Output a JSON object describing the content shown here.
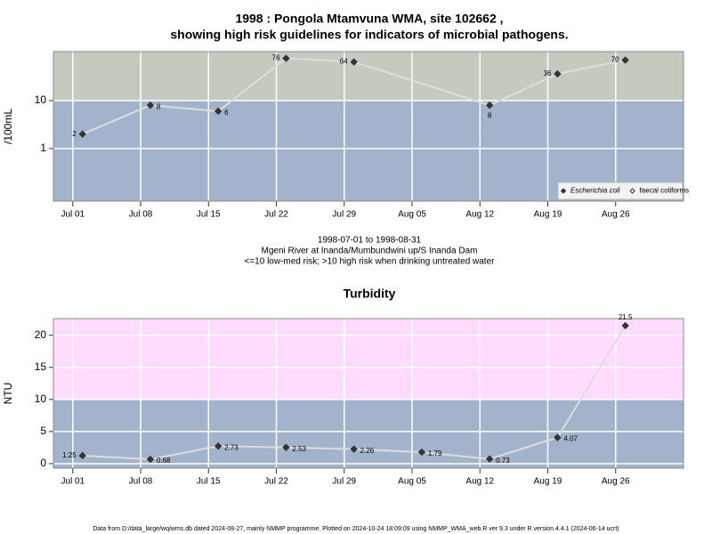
{
  "chart_data": [
    {
      "type": "line",
      "title": [
        "1998 : Pongola Mtamvuna WMA, site 102662 ,",
        "showing high risk guidelines for indicators of microbial pathogens."
      ],
      "caption": [
        "1998-07-01 to 1998-08-31",
        "Mgeni River at Inanda/Mumbundwini up/S Inanda Dam",
        "<=10 low-med risk; >10 high risk when drinking untreated water"
      ],
      "ylabel": "/100mL",
      "yscale": "log",
      "ylim": [
        0.08,
        105
      ],
      "yticks": [
        1,
        10
      ],
      "xlim": [
        "06-29",
        "09-02"
      ],
      "xticks": [
        {
          "value": "07-01",
          "label": "Jul 01"
        },
        {
          "value": "07-08",
          "label": "Jul 08"
        },
        {
          "value": "07-15",
          "label": "Jul 15"
        },
        {
          "value": "07-22",
          "label": "Jul 22"
        },
        {
          "value": "07-29",
          "label": "Jul 29"
        },
        {
          "value": "08-05",
          "label": "Aug 05"
        },
        {
          "value": "08-12",
          "label": "Aug 12"
        },
        {
          "value": "08-19",
          "label": "Aug 19"
        },
        {
          "value": "08-26",
          "label": "Aug 26"
        }
      ],
      "threshold": 10,
      "band_colors": {
        "low": "#a3b3cc",
        "high": "#c3cbbf"
      },
      "grid": true,
      "legend": "bottom-right",
      "series": [
        {
          "name": "Escherichia coli",
          "color": "#333333",
          "line_color": "#dddddd",
          "marker": "filled",
          "x": [
            "07-02",
            "07-09",
            "07-16",
            "07-23",
            "07-30",
            "08-13",
            "08-20",
            "08-27"
          ],
          "values": [
            2,
            8,
            6,
            76,
            64,
            8,
            36,
            70
          ]
        },
        {
          "name": "faecal coliforms",
          "color": "#333333",
          "line_color": "#dddddd",
          "marker": "open",
          "x": [],
          "values": []
        }
      ]
    },
    {
      "type": "line",
      "title": [
        "Turbidity"
      ],
      "ylabel": "NTU",
      "yscale": "linear",
      "ylim": [
        -0.7,
        22.6
      ],
      "yticks": [
        0,
        5,
        10,
        15,
        20
      ],
      "xlim": [
        "06-29",
        "09-02"
      ],
      "xticks": [
        {
          "value": "07-01",
          "label": "Jul 01"
        },
        {
          "value": "07-08",
          "label": "Jul 08"
        },
        {
          "value": "07-15",
          "label": "Jul 15"
        },
        {
          "value": "07-22",
          "label": "Jul 22"
        },
        {
          "value": "07-29",
          "label": "Jul 29"
        },
        {
          "value": "08-05",
          "label": "Aug 05"
        },
        {
          "value": "08-12",
          "label": "Aug 12"
        },
        {
          "value": "08-19",
          "label": "Aug 19"
        },
        {
          "value": "08-26",
          "label": "Aug 26"
        }
      ],
      "threshold": 10,
      "band_colors": {
        "low": "#a3b3cc",
        "high": "#ffdcff"
      },
      "grid": true,
      "series": [
        {
          "name": "Turbidity",
          "color": "#333333",
          "line_color": "#dddddd",
          "marker": "filled",
          "x": [
            "07-02",
            "07-09",
            "07-16",
            "07-23",
            "07-30",
            "08-06",
            "08-13",
            "08-20",
            "08-27"
          ],
          "values": [
            1.25,
            0.68,
            2.73,
            2.53,
            2.26,
            1.79,
            0.73,
            4.07,
            21.5
          ]
        }
      ]
    }
  ],
  "footer": "Data from D:/data_large/wq/wms.db dated 2024-08-27, mainly NMMP programme. Plotted on 2024-10-24 18:09:09 using NMMP_WMA_web.R ver 9.3 under R version 4.4.1 (2024-06-14 ucrt)"
}
